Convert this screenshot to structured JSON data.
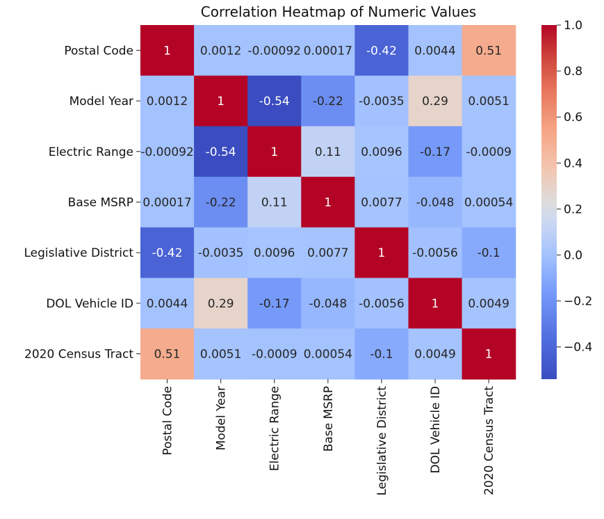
{
  "chart_data": {
    "type": "heatmap",
    "title": "Correlation Heatmap of Numeric Values",
    "row_labels": [
      "Postal Code",
      "Model Year",
      "Electric Range",
      "Base MSRP",
      "Legislative District",
      "DOL Vehicle ID",
      "2020 Census Tract"
    ],
    "col_labels": [
      "Postal Code",
      "Model Year",
      "Electric Range",
      "Base MSRP",
      "Legislative District",
      "DOL Vehicle ID",
      "2020 Census Tract"
    ],
    "values": [
      [
        1,
        0.0012,
        -0.00092,
        0.00017,
        -0.42,
        0.0044,
        0.51
      ],
      [
        0.0012,
        1,
        -0.54,
        -0.22,
        -0.0035,
        0.29,
        0.0051
      ],
      [
        -0.00092,
        -0.54,
        1,
        0.11,
        0.0096,
        -0.17,
        -0.0009
      ],
      [
        0.00017,
        -0.22,
        0.11,
        1,
        0.0077,
        -0.048,
        0.00054
      ],
      [
        -0.42,
        -0.0035,
        0.0096,
        0.0077,
        1,
        -0.0056,
        -0.1
      ],
      [
        0.0044,
        0.29,
        -0.17,
        -0.048,
        -0.0056,
        1,
        0.0049
      ],
      [
        0.51,
        0.0051,
        -0.0009,
        0.00054,
        -0.1,
        0.0049,
        1
      ]
    ],
    "annotations": [
      [
        "1",
        "0.0012",
        "-0.00092",
        "0.00017",
        "-0.42",
        "0.0044",
        "0.51"
      ],
      [
        "0.0012",
        "1",
        "-0.54",
        "-0.22",
        "-0.0035",
        "0.29",
        "0.0051"
      ],
      [
        "-0.00092",
        "-0.54",
        "1",
        "0.11",
        "0.0096",
        "-0.17",
        "-0.0009"
      ],
      [
        "0.00017",
        "-0.22",
        "0.11",
        "1",
        "0.0077",
        "-0.048",
        "0.00054"
      ],
      [
        "-0.42",
        "-0.0035",
        "0.0096",
        "0.0077",
        "1",
        "-0.0056",
        "-0.1"
      ],
      [
        "0.0044",
        "0.29",
        "-0.17",
        "-0.048",
        "-0.0056",
        "1",
        "0.0049"
      ],
      [
        "0.51",
        "0.0051",
        "-0.0009",
        "0.00054",
        "-0.1",
        "0.0049",
        "1"
      ]
    ],
    "colormap": "coolwarm",
    "vmin": -0.54,
    "vmax": 1.0,
    "colorbar_ticks": [
      1.0,
      0.8,
      0.6,
      0.4,
      0.2,
      0.0,
      -0.2,
      -0.4
    ],
    "colorbar_tick_labels": [
      "1.0",
      "0.8",
      "0.6",
      "0.4",
      "0.2",
      "0.0",
      "−0.2",
      "−0.4"
    ],
    "xlabel_rotation": "vertical",
    "grid": false
  }
}
